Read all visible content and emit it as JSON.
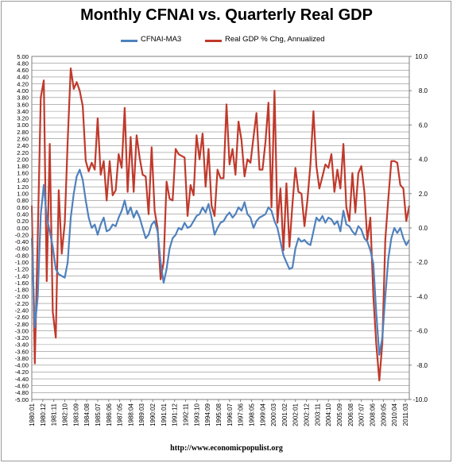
{
  "chart_data": {
    "type": "line",
    "title": "Monthly CFNAI vs. Quarterly Real GDP",
    "legend_position": "top",
    "grid": "horizontal",
    "left_axis": {
      "ylim": [
        -5.0,
        5.0
      ],
      "ticks": [
        "5.00",
        "4.80",
        "4.60",
        "4.40",
        "4.20",
        "4.00",
        "3.80",
        "3.60",
        "3.40",
        "3.20",
        "3.00",
        "2.80",
        "2.60",
        "2.40",
        "2.20",
        "2.00",
        "1.80",
        "1.60",
        "1.40",
        "1.20",
        "1.00",
        "0.80",
        "0.60",
        "0.40",
        "0.20",
        "0.00",
        "-0.20",
        "-0.40",
        "-0.60",
        "-0.80",
        "-1.00",
        "-1.20",
        "-1.40",
        "-1.60",
        "-1.80",
        "-2.00",
        "-2.20",
        "-2.40",
        "-2.60",
        "-2.80",
        "-3.00",
        "-3.20",
        "-3.40",
        "-3.60",
        "-3.80",
        "-4.00",
        "-4.20",
        "-4.40",
        "-4.60",
        "-4.80",
        "-5.00"
      ]
    },
    "right_axis": {
      "ylim": [
        -10.0,
        10.0
      ],
      "ticks": [
        "10.0",
        "8.0",
        "6.0",
        "4.0",
        "2.0",
        "0.0",
        "-2.0",
        "-4.0",
        "-6.0",
        "-8.0",
        "-10.0"
      ]
    },
    "x_axis": {
      "xlim": [
        1980.0,
        2011.5
      ],
      "tick_labels": [
        "1980:01",
        "1980:12",
        "1981:11",
        "1982:10",
        "1983:09",
        "1984:08",
        "1985:07",
        "1986:06",
        "1987:05",
        "1988:04",
        "1989:03",
        "1990:02",
        "1991:01",
        "1991:12",
        "1992:11",
        "1993:10",
        "1994:09",
        "1995:08",
        "1996:07",
        "1997:06",
        "1998:05",
        "1999:04",
        "2000:03",
        "2001:02",
        "2002:01",
        "2002:12",
        "2003:11",
        "2004:10",
        "2005:09",
        "2006:08",
        "2007:07",
        "2008:06",
        "2009:05",
        "2010:04",
        "2011:03"
      ]
    },
    "series": [
      {
        "name": "CFNAI-MA3",
        "color": "#4f81bd",
        "axis": "left",
        "points": [
          [
            1980.0,
            -0.3
          ],
          [
            1980.25,
            -2.9
          ],
          [
            1980.5,
            -2.0
          ],
          [
            1980.75,
            0.4
          ],
          [
            1981.0,
            1.25
          ],
          [
            1981.25,
            0.3
          ],
          [
            1981.5,
            -0.1
          ],
          [
            1981.75,
            -0.55
          ],
          [
            1982.0,
            -1.2
          ],
          [
            1982.25,
            -1.35
          ],
          [
            1982.5,
            -1.4
          ],
          [
            1982.75,
            -1.45
          ],
          [
            1983.0,
            -1.0
          ],
          [
            1983.25,
            0.3
          ],
          [
            1983.5,
            1.0
          ],
          [
            1983.75,
            1.5
          ],
          [
            1984.0,
            1.7
          ],
          [
            1984.25,
            1.4
          ],
          [
            1984.5,
            0.8
          ],
          [
            1984.75,
            0.3
          ],
          [
            1985.0,
            0.0
          ],
          [
            1985.25,
            0.1
          ],
          [
            1985.5,
            -0.2
          ],
          [
            1985.75,
            0.1
          ],
          [
            1986.0,
            0.3
          ],
          [
            1986.25,
            -0.1
          ],
          [
            1986.5,
            -0.05
          ],
          [
            1986.75,
            0.1
          ],
          [
            1987.0,
            0.05
          ],
          [
            1987.25,
            0.3
          ],
          [
            1987.5,
            0.5
          ],
          [
            1987.75,
            0.8
          ],
          [
            1988.0,
            0.4
          ],
          [
            1988.25,
            0.6
          ],
          [
            1988.5,
            0.3
          ],
          [
            1988.75,
            0.5
          ],
          [
            1989.0,
            0.3
          ],
          [
            1989.25,
            0.0
          ],
          [
            1989.5,
            -0.3
          ],
          [
            1989.75,
            -0.2
          ],
          [
            1990.0,
            0.1
          ],
          [
            1990.25,
            0.2
          ],
          [
            1990.5,
            -0.1
          ],
          [
            1990.75,
            -1.0
          ],
          [
            1991.0,
            -1.6
          ],
          [
            1991.25,
            -1.2
          ],
          [
            1991.5,
            -0.6
          ],
          [
            1991.75,
            -0.3
          ],
          [
            1992.0,
            -0.2
          ],
          [
            1992.25,
            0.0
          ],
          [
            1992.5,
            -0.05
          ],
          [
            1992.75,
            0.15
          ],
          [
            1993.0,
            0.0
          ],
          [
            1993.25,
            0.05
          ],
          [
            1993.5,
            0.2
          ],
          [
            1993.75,
            0.35
          ],
          [
            1994.0,
            0.4
          ],
          [
            1994.25,
            0.6
          ],
          [
            1994.5,
            0.45
          ],
          [
            1994.75,
            0.7
          ],
          [
            1995.0,
            0.3
          ],
          [
            1995.25,
            -0.2
          ],
          [
            1995.5,
            0.0
          ],
          [
            1995.75,
            0.15
          ],
          [
            1996.0,
            0.2
          ],
          [
            1996.25,
            0.35
          ],
          [
            1996.5,
            0.45
          ],
          [
            1996.75,
            0.3
          ],
          [
            1997.0,
            0.4
          ],
          [
            1997.25,
            0.6
          ],
          [
            1997.5,
            0.5
          ],
          [
            1997.75,
            0.75
          ],
          [
            1998.0,
            0.4
          ],
          [
            1998.25,
            0.3
          ],
          [
            1998.5,
            0.0
          ],
          [
            1998.75,
            0.2
          ],
          [
            1999.0,
            0.3
          ],
          [
            1999.25,
            0.35
          ],
          [
            1999.5,
            0.4
          ],
          [
            1999.75,
            0.6
          ],
          [
            2000.0,
            0.5
          ],
          [
            2000.25,
            0.2
          ],
          [
            2000.5,
            0.0
          ],
          [
            2000.75,
            -0.4
          ],
          [
            2001.0,
            -0.8
          ],
          [
            2001.25,
            -1.0
          ],
          [
            2001.5,
            -1.2
          ],
          [
            2001.75,
            -1.15
          ],
          [
            2002.0,
            -0.6
          ],
          [
            2002.25,
            -0.3
          ],
          [
            2002.5,
            -0.4
          ],
          [
            2002.75,
            -0.35
          ],
          [
            2003.0,
            -0.45
          ],
          [
            2003.25,
            -0.5
          ],
          [
            2003.5,
            -0.1
          ],
          [
            2003.75,
            0.3
          ],
          [
            2004.0,
            0.2
          ],
          [
            2004.25,
            0.35
          ],
          [
            2004.5,
            0.15
          ],
          [
            2004.75,
            0.3
          ],
          [
            2005.0,
            0.25
          ],
          [
            2005.25,
            0.1
          ],
          [
            2005.5,
            0.2
          ],
          [
            2005.75,
            -0.1
          ],
          [
            2006.0,
            0.5
          ],
          [
            2006.25,
            0.1
          ],
          [
            2006.5,
            0.05
          ],
          [
            2006.75,
            -0.1
          ],
          [
            2007.0,
            -0.2
          ],
          [
            2007.25,
            0.05
          ],
          [
            2007.5,
            -0.05
          ],
          [
            2007.75,
            -0.3
          ],
          [
            2008.0,
            -0.4
          ],
          [
            2008.25,
            -0.65
          ],
          [
            2008.5,
            -1.05
          ],
          [
            2008.75,
            -2.5
          ],
          [
            2009.0,
            -3.7
          ],
          [
            2009.25,
            -3.2
          ],
          [
            2009.5,
            -2.0
          ],
          [
            2009.75,
            -0.9
          ],
          [
            2010.0,
            -0.3
          ],
          [
            2010.25,
            0.0
          ],
          [
            2010.5,
            -0.15
          ],
          [
            2010.75,
            0.0
          ],
          [
            2011.0,
            -0.3
          ],
          [
            2011.25,
            -0.5
          ],
          [
            2011.5,
            -0.35
          ]
        ]
      },
      {
        "name": "Real GDP % Chg, Annualized",
        "color": "#c0392b",
        "axis": "right",
        "points": [
          [
            1980.0,
            1.3
          ],
          [
            1980.25,
            -7.9
          ],
          [
            1980.5,
            -0.5
          ],
          [
            1980.75,
            7.6
          ],
          [
            1981.0,
            8.6
          ],
          [
            1981.25,
            -3.1
          ],
          [
            1981.5,
            4.9
          ],
          [
            1981.75,
            -4.9
          ],
          [
            1982.0,
            -6.4
          ],
          [
            1982.25,
            2.2
          ],
          [
            1982.5,
            -1.5
          ],
          [
            1982.75,
            0.3
          ],
          [
            1983.0,
            5.1
          ],
          [
            1983.25,
            9.3
          ],
          [
            1983.5,
            8.1
          ],
          [
            1983.75,
            8.5
          ],
          [
            1984.0,
            8.0
          ],
          [
            1984.25,
            7.1
          ],
          [
            1984.5,
            3.9
          ],
          [
            1984.75,
            3.3
          ],
          [
            1985.0,
            3.8
          ],
          [
            1985.25,
            3.4
          ],
          [
            1985.5,
            6.4
          ],
          [
            1985.75,
            3.1
          ],
          [
            1986.0,
            3.9
          ],
          [
            1986.25,
            1.6
          ],
          [
            1986.5,
            3.9
          ],
          [
            1986.75,
            1.9
          ],
          [
            1987.0,
            2.2
          ],
          [
            1987.25,
            4.3
          ],
          [
            1987.5,
            3.5
          ],
          [
            1987.75,
            7.0
          ],
          [
            1988.0,
            2.1
          ],
          [
            1988.25,
            5.3
          ],
          [
            1988.5,
            2.1
          ],
          [
            1988.75,
            5.4
          ],
          [
            1989.0,
            4.1
          ],
          [
            1989.25,
            3.1
          ],
          [
            1989.5,
            3.0
          ],
          [
            1989.75,
            0.8
          ],
          [
            1990.0,
            4.7
          ],
          [
            1990.25,
            1.0
          ],
          [
            1990.5,
            0.0
          ],
          [
            1990.75,
            -3.0
          ],
          [
            1991.0,
            -2.0
          ],
          [
            1991.25,
            2.7
          ],
          [
            1991.5,
            1.7
          ],
          [
            1991.75,
            1.6
          ],
          [
            1992.0,
            4.6
          ],
          [
            1992.25,
            4.3
          ],
          [
            1992.5,
            4.2
          ],
          [
            1992.75,
            4.1
          ],
          [
            1993.0,
            0.7
          ],
          [
            1993.25,
            2.5
          ],
          [
            1993.5,
            1.9
          ],
          [
            1993.75,
            5.4
          ],
          [
            1994.0,
            4.0
          ],
          [
            1994.25,
            5.5
          ],
          [
            1994.5,
            2.4
          ],
          [
            1994.75,
            4.6
          ],
          [
            1995.0,
            1.3
          ],
          [
            1995.25,
            0.7
          ],
          [
            1995.5,
            3.4
          ],
          [
            1995.75,
            2.9
          ],
          [
            1996.0,
            2.9
          ],
          [
            1996.25,
            7.2
          ],
          [
            1996.5,
            3.7
          ],
          [
            1996.75,
            4.6
          ],
          [
            1997.0,
            3.1
          ],
          [
            1997.25,
            6.2
          ],
          [
            1997.5,
            5.1
          ],
          [
            1997.75,
            3.0
          ],
          [
            1998.0,
            4.0
          ],
          [
            1998.25,
            3.8
          ],
          [
            1998.5,
            5.3
          ],
          [
            1998.75,
            6.7
          ],
          [
            1999.0,
            3.4
          ],
          [
            1999.25,
            3.4
          ],
          [
            1999.5,
            5.0
          ],
          [
            1999.75,
            7.3
          ],
          [
            2000.0,
            1.2
          ],
          [
            2000.25,
            8.0
          ],
          [
            2000.5,
            0.3
          ],
          [
            2000.75,
            2.3
          ],
          [
            2001.0,
            -1.3
          ],
          [
            2001.25,
            2.6
          ],
          [
            2001.5,
            -1.1
          ],
          [
            2001.75,
            1.4
          ],
          [
            2002.0,
            3.5
          ],
          [
            2002.25,
            2.1
          ],
          [
            2002.5,
            2.0
          ],
          [
            2002.75,
            0.1
          ],
          [
            2003.0,
            1.6
          ],
          [
            2003.25,
            3.7
          ],
          [
            2003.5,
            6.8
          ],
          [
            2003.75,
            3.6
          ],
          [
            2004.0,
            2.3
          ],
          [
            2004.25,
            3.0
          ],
          [
            2004.5,
            3.7
          ],
          [
            2004.75,
            3.5
          ],
          [
            2005.0,
            4.3
          ],
          [
            2005.25,
            2.1
          ],
          [
            2005.5,
            3.4
          ],
          [
            2005.75,
            2.3
          ],
          [
            2006.0,
            4.9
          ],
          [
            2006.25,
            1.2
          ],
          [
            2006.5,
            0.4
          ],
          [
            2006.75,
            3.2
          ],
          [
            2007.0,
            0.9
          ],
          [
            2007.25,
            3.2
          ],
          [
            2007.5,
            3.6
          ],
          [
            2007.75,
            2.1
          ],
          [
            2008.0,
            -0.7
          ],
          [
            2008.25,
            0.6
          ],
          [
            2008.5,
            -4.0
          ],
          [
            2008.75,
            -6.8
          ],
          [
            2009.0,
            -8.9
          ],
          [
            2009.25,
            -6.7
          ],
          [
            2009.5,
            -0.7
          ],
          [
            2009.75,
            1.7
          ],
          [
            2010.0,
            3.9
          ],
          [
            2010.25,
            3.9
          ],
          [
            2010.5,
            3.8
          ],
          [
            2010.75,
            2.5
          ],
          [
            2011.0,
            2.3
          ],
          [
            2011.25,
            0.4
          ],
          [
            2011.5,
            1.3
          ]
        ]
      }
    ]
  },
  "footer": {
    "source_text": "http://www.economicpopulist.org"
  }
}
